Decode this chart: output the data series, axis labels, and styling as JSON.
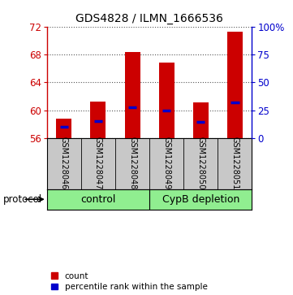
{
  "title": "GDS4828 / ILMN_1666536",
  "samples": [
    "GSM1228046",
    "GSM1228047",
    "GSM1228048",
    "GSM1228049",
    "GSM1228050",
    "GSM1228051"
  ],
  "groups": [
    "control",
    "control",
    "control",
    "CypB depletion",
    "CypB depletion",
    "CypB depletion"
  ],
  "bar_values": [
    58.8,
    61.3,
    68.4,
    66.8,
    61.1,
    71.3
  ],
  "bar_base": 56,
  "percentile_left_values": [
    57.7,
    58.5,
    60.5,
    60.0,
    58.4,
    61.2
  ],
  "ylim_left": [
    56,
    72
  ],
  "yticks_left": [
    56,
    60,
    64,
    68,
    72
  ],
  "ylim_right": [
    0,
    100
  ],
  "yticks_right": [
    0,
    25,
    50,
    75,
    100
  ],
  "yticklabels_right": [
    "0",
    "25",
    "50",
    "75",
    "100%"
  ],
  "bar_color": "#CC0000",
  "percentile_color": "#0000CC",
  "left_axis_color": "#CC0000",
  "right_axis_color": "#0000CC",
  "bg_color": "#FFFFFF",
  "grid_color": "#555555",
  "sample_bg_color": "#C8C8C8",
  "group_color": "#90EE90",
  "bar_width": 0.45,
  "figsize": [
    3.61,
    3.63
  ],
  "dpi": 100,
  "title_fontsize": 10,
  "tick_fontsize": 8.5,
  "sample_fontsize": 7,
  "group_fontsize": 9,
  "legend_fontsize": 7.5
}
